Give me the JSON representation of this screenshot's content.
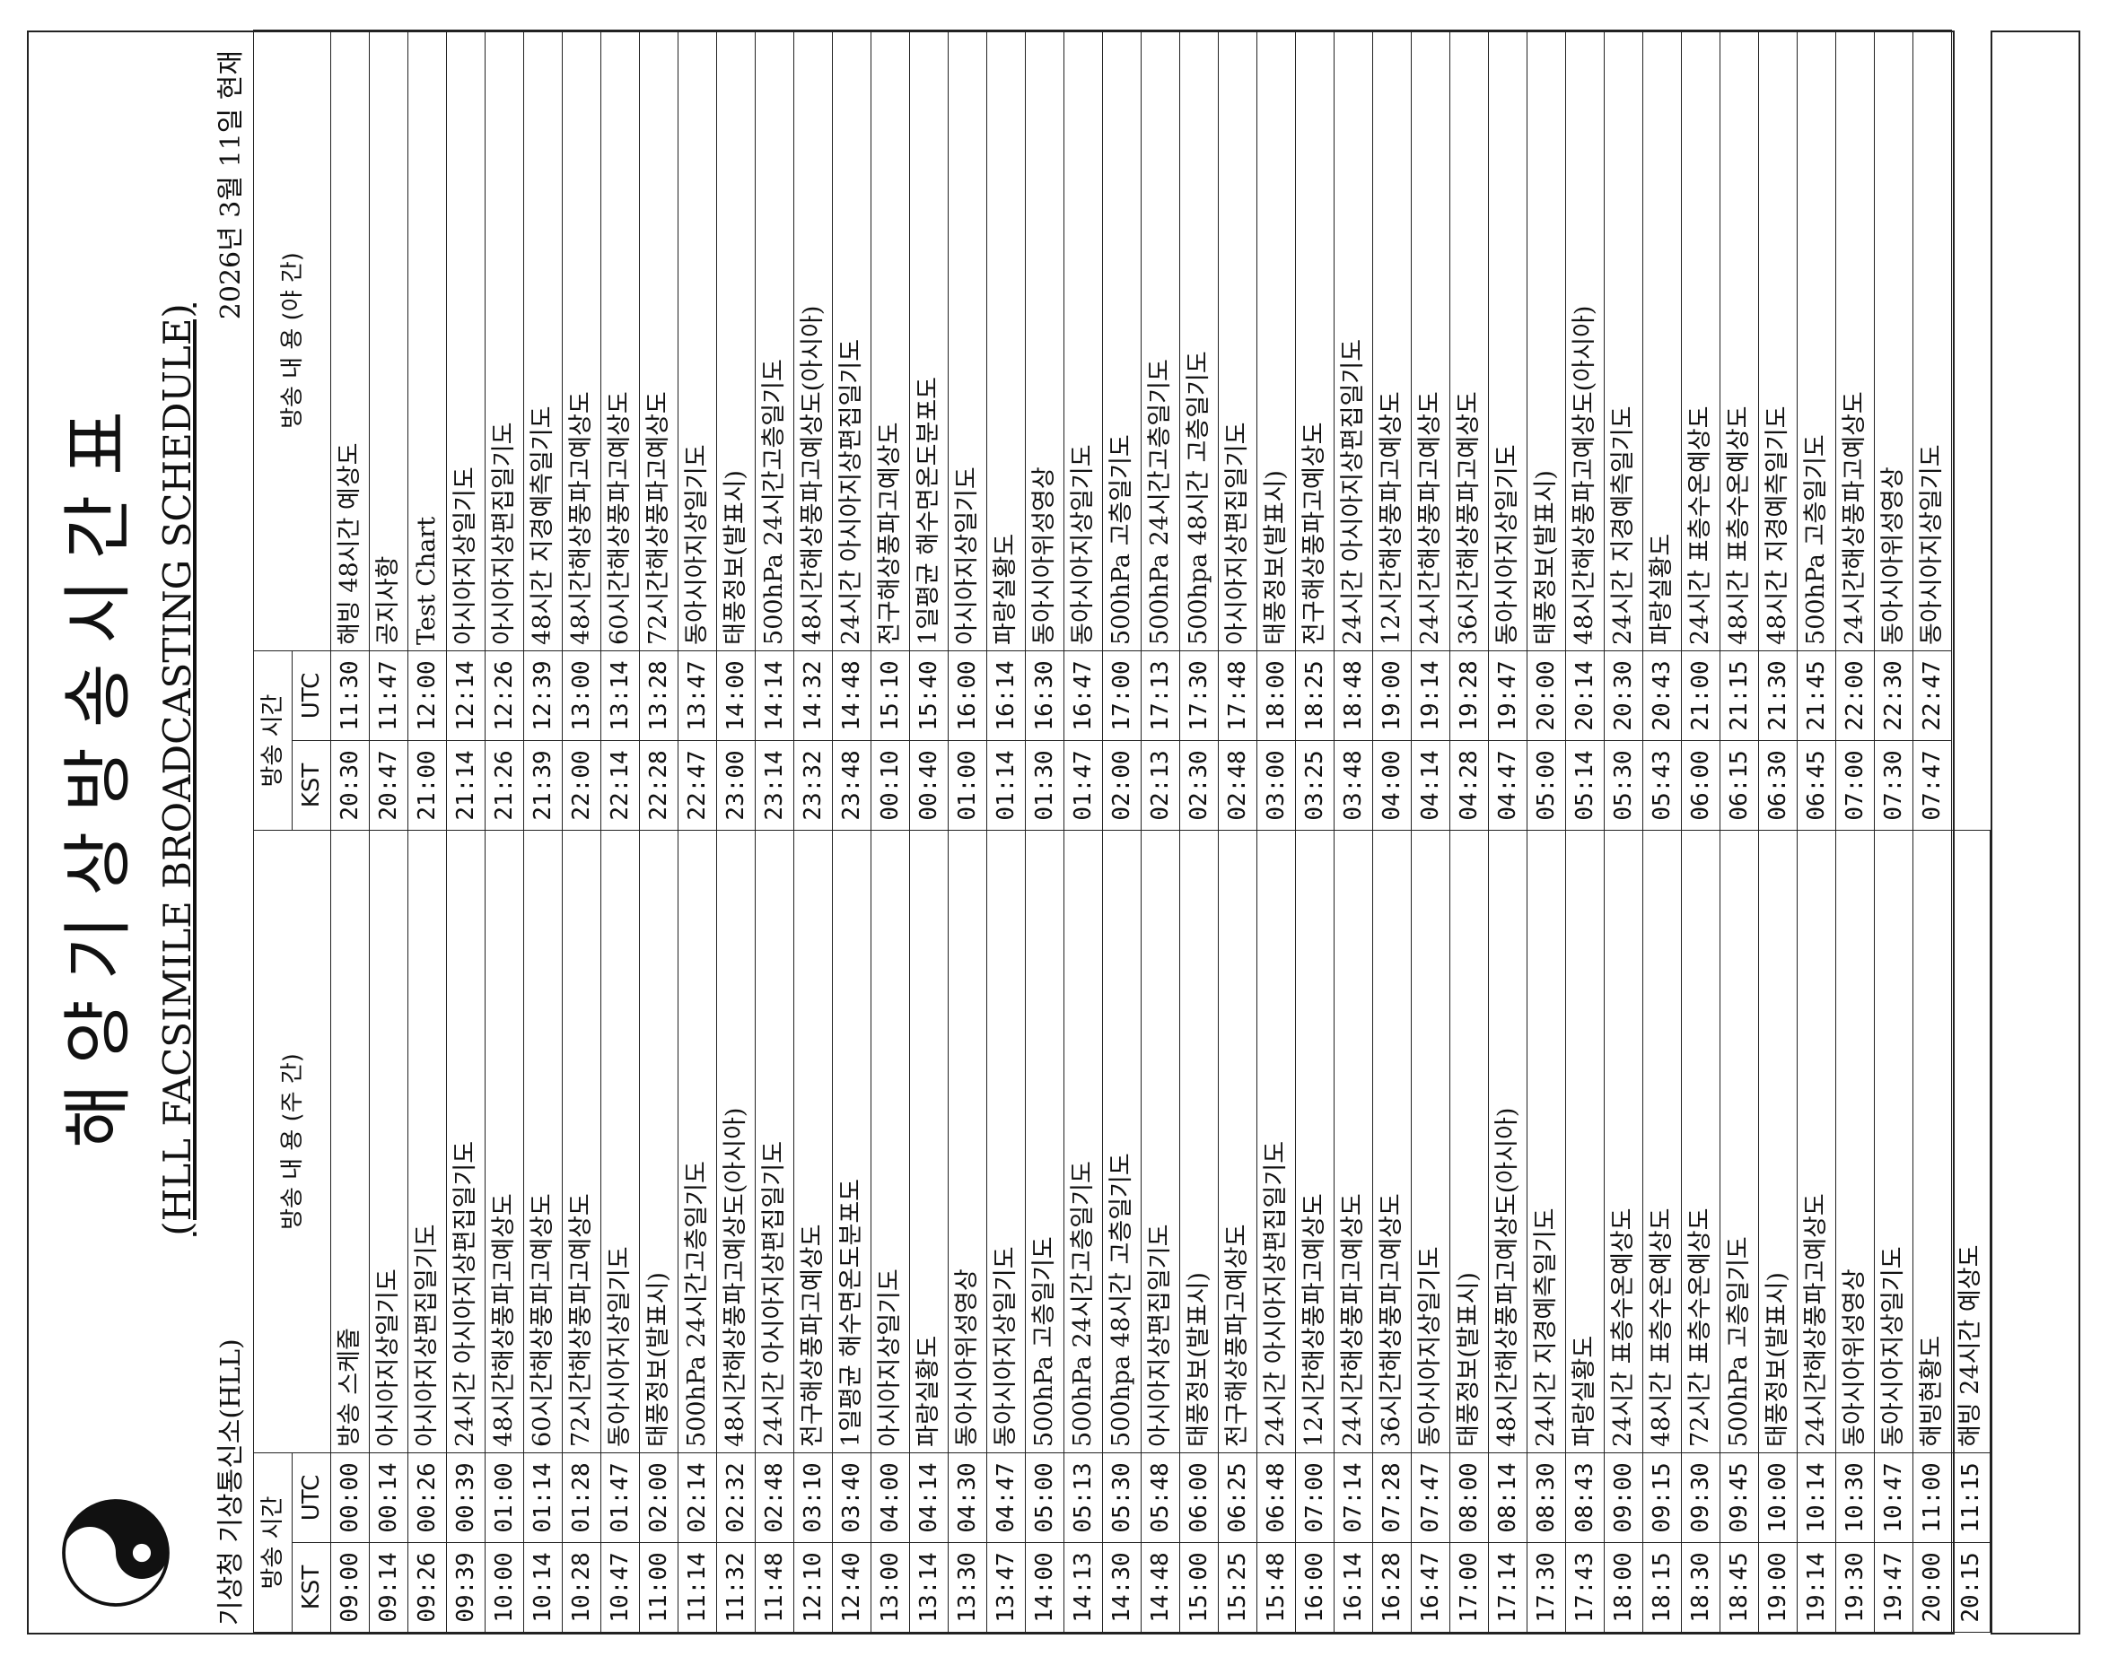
{
  "header": {
    "title_ko": "해양기상방송시간표",
    "title_en": "(HLL FACSIMILE BROADCASTING SCHEDULE)",
    "agency": "기상청 기상통신소(HLL)",
    "as_of": "2026년 3월 11일 현재"
  },
  "columns": {
    "time_group": "방송 시간",
    "kst": "KST",
    "utc": "UTC",
    "day_content": "방송 내 용 (주 간)",
    "night_content": "방송 내 용 (야 간)"
  },
  "day_rows": [
    {
      "kst": "09:00",
      "utc": "00:00",
      "content": "방송 스케줄"
    },
    {
      "kst": "09:14",
      "utc": "00:14",
      "content": "아시아지상일기도"
    },
    {
      "kst": "09:26",
      "utc": "00:26",
      "content": "아시아지상편집일기도"
    },
    {
      "kst": "09:39",
      "utc": "00:39",
      "content": "24시간 아시아지상편집일기도"
    },
    {
      "kst": "10:00",
      "utc": "01:00",
      "content": "48시간해상풍파고예상도"
    },
    {
      "kst": "10:14",
      "utc": "01:14",
      "content": "60시간해상풍파고예상도"
    },
    {
      "kst": "10:28",
      "utc": "01:28",
      "content": "72시간해상풍파고예상도"
    },
    {
      "kst": "10:47",
      "utc": "01:47",
      "content": "동아시아지상일기도"
    },
    {
      "kst": "11:00",
      "utc": "02:00",
      "content": "태풍정보(발표시)"
    },
    {
      "kst": "11:14",
      "utc": "02:14",
      "content": "500hPa 24시간고층일기도"
    },
    {
      "kst": "11:32",
      "utc": "02:32",
      "content": "48시간해상풍파고예상도(아시아)"
    },
    {
      "kst": "11:48",
      "utc": "02:48",
      "content": "24시간 아시아지상편집일기도"
    },
    {
      "kst": "12:10",
      "utc": "03:10",
      "content": "전구해상풍파고예상도"
    },
    {
      "kst": "12:40",
      "utc": "03:40",
      "content": "1일평균 해수면온도분포도"
    },
    {
      "kst": "13:00",
      "utc": "04:00",
      "content": "아시아지상일기도"
    },
    {
      "kst": "13:14",
      "utc": "04:14",
      "content": "파랑실황도"
    },
    {
      "kst": "13:30",
      "utc": "04:30",
      "content": "동아시아위성영상"
    },
    {
      "kst": "13:47",
      "utc": "04:47",
      "content": "동아시아지상일기도"
    },
    {
      "kst": "14:00",
      "utc": "05:00",
      "content": "500hPa 고층일기도"
    },
    {
      "kst": "14:13",
      "utc": "05:13",
      "content": "500hPa 24시간고층일기도"
    },
    {
      "kst": "14:30",
      "utc": "05:30",
      "content": "500hpa 48시간 고층일기도"
    },
    {
      "kst": "14:48",
      "utc": "05:48",
      "content": "아시아지상편집일기도"
    },
    {
      "kst": "15:00",
      "utc": "06:00",
      "content": "태풍정보(발표시)"
    },
    {
      "kst": "15:25",
      "utc": "06:25",
      "content": "전구해상풍파고예상도"
    },
    {
      "kst": "15:48",
      "utc": "06:48",
      "content": "24시간 아시아지상편집일기도"
    },
    {
      "kst": "16:00",
      "utc": "07:00",
      "content": "12시간해상풍파고예상도"
    },
    {
      "kst": "16:14",
      "utc": "07:14",
      "content": "24시간해상풍파고예상도"
    },
    {
      "kst": "16:28",
      "utc": "07:28",
      "content": "36시간해상풍파고예상도"
    },
    {
      "kst": "16:47",
      "utc": "07:47",
      "content": "동아시아지상일기도"
    },
    {
      "kst": "17:00",
      "utc": "08:00",
      "content": "태풍정보(발표시)"
    },
    {
      "kst": "17:14",
      "utc": "08:14",
      "content": "48시간해상풍파고예상도(아시아)"
    },
    {
      "kst": "17:30",
      "utc": "08:30",
      "content": "24시간 지경예측일기도"
    },
    {
      "kst": "17:43",
      "utc": "08:43",
      "content": "파랑실황도"
    },
    {
      "kst": "18:00",
      "utc": "09:00",
      "content": "24시간 표층수온예상도"
    },
    {
      "kst": "18:15",
      "utc": "09:15",
      "content": "48시간 표층수온예상도"
    },
    {
      "kst": "18:30",
      "utc": "09:30",
      "content": "72시간 표층수온예상도"
    },
    {
      "kst": "18:45",
      "utc": "09:45",
      "content": "500hPa 고층일기도"
    },
    {
      "kst": "19:00",
      "utc": "10:00",
      "content": "태풍정보(발표시)"
    },
    {
      "kst": "19:14",
      "utc": "10:14",
      "content": "24시간해상풍파고예상도"
    },
    {
      "kst": "19:30",
      "utc": "10:30",
      "content": "동아시아위성영상"
    },
    {
      "kst": "19:47",
      "utc": "10:47",
      "content": "동아시아지상일기도"
    },
    {
      "kst": "20:00",
      "utc": "11:00",
      "content": "해빙현황도"
    },
    {
      "kst": "20:15",
      "utc": "11:15",
      "content": "해빙 24시간 예상도"
    }
  ],
  "night_rows": [
    {
      "kst": "20:30",
      "utc": "11:30",
      "content": "해빙 48시간 예상도"
    },
    {
      "kst": "20:47",
      "utc": "11:47",
      "content": "공지사항"
    },
    {
      "kst": "21:00",
      "utc": "12:00",
      "content": "Test Chart"
    },
    {
      "kst": "21:14",
      "utc": "12:14",
      "content": "아시아지상일기도"
    },
    {
      "kst": "21:26",
      "utc": "12:26",
      "content": "아시아지상편집일기도"
    },
    {
      "kst": "21:39",
      "utc": "12:39",
      "content": "48시간 지경예측일기도"
    },
    {
      "kst": "22:00",
      "utc": "13:00",
      "content": "48시간해상풍파고예상도"
    },
    {
      "kst": "22:14",
      "utc": "13:14",
      "content": "60시간해상풍파고예상도"
    },
    {
      "kst": "22:28",
      "utc": "13:28",
      "content": "72시간해상풍파고예상도"
    },
    {
      "kst": "22:47",
      "utc": "13:47",
      "content": "동아시아지상일기도"
    },
    {
      "kst": "23:00",
      "utc": "14:00",
      "content": "태풍정보(발표시)"
    },
    {
      "kst": "23:14",
      "utc": "14:14",
      "content": "500hPa 24시간고층일기도"
    },
    {
      "kst": "23:32",
      "utc": "14:32",
      "content": "48시간해상풍파고예상도(아시아)"
    },
    {
      "kst": "23:48",
      "utc": "14:48",
      "content": "24시간 아시아지상편집일기도"
    },
    {
      "kst": "00:10",
      "utc": "15:10",
      "content": "전구해상풍파고예상도"
    },
    {
      "kst": "00:40",
      "utc": "15:40",
      "content": "1일평균 해수면온도분포도"
    },
    {
      "kst": "01:00",
      "utc": "16:00",
      "content": "아시아지상일기도"
    },
    {
      "kst": "01:14",
      "utc": "16:14",
      "content": "파랑실황도"
    },
    {
      "kst": "01:30",
      "utc": "16:30",
      "content": "동아시아위성영상"
    },
    {
      "kst": "01:47",
      "utc": "16:47",
      "content": "동아시아지상일기도"
    },
    {
      "kst": "02:00",
      "utc": "17:00",
      "content": "500hPa 고층일기도"
    },
    {
      "kst": "02:13",
      "utc": "17:13",
      "content": "500hPa 24시간고층일기도"
    },
    {
      "kst": "02:30",
      "utc": "17:30",
      "content": "500hpa 48시간 고층일기도"
    },
    {
      "kst": "02:48",
      "utc": "17:48",
      "content": "아시아지상편집일기도"
    },
    {
      "kst": "03:00",
      "utc": "18:00",
      "content": "태풍정보(발표시)"
    },
    {
      "kst": "03:25",
      "utc": "18:25",
      "content": "전구해상풍파고예상도"
    },
    {
      "kst": "03:48",
      "utc": "18:48",
      "content": "24시간 아시아지상편집일기도"
    },
    {
      "kst": "04:00",
      "utc": "19:00",
      "content": "12시간해상풍파고예상도"
    },
    {
      "kst": "04:14",
      "utc": "19:14",
      "content": "24시간해상풍파고예상도"
    },
    {
      "kst": "04:28",
      "utc": "19:28",
      "content": "36시간해상풍파고예상도"
    },
    {
      "kst": "04:47",
      "utc": "19:47",
      "content": "동아시아지상일기도"
    },
    {
      "kst": "05:00",
      "utc": "20:00",
      "content": "태풍정보(발표시)"
    },
    {
      "kst": "05:14",
      "utc": "20:14",
      "content": "48시간해상풍파고예상도(아시아)"
    },
    {
      "kst": "05:30",
      "utc": "20:30",
      "content": "24시간 지경예측일기도"
    },
    {
      "kst": "05:43",
      "utc": "20:43",
      "content": "파랑실황도"
    },
    {
      "kst": "06:00",
      "utc": "21:00",
      "content": "24시간 표층수온예상도"
    },
    {
      "kst": "06:15",
      "utc": "21:15",
      "content": "48시간 표층수온예상도"
    },
    {
      "kst": "06:30",
      "utc": "21:30",
      "content": "48시간 지경예측일기도"
    },
    {
      "kst": "06:45",
      "utc": "21:45",
      "content": "500hPa 고층일기도"
    },
    {
      "kst": "07:00",
      "utc": "22:00",
      "content": "24시간해상풍파고예상도"
    },
    {
      "kst": "07:30",
      "utc": "22:30",
      "content": "동아시아위성영상"
    },
    {
      "kst": "07:47",
      "utc": "22:47",
      "content": "동아시아지상일기도"
    }
  ]
}
